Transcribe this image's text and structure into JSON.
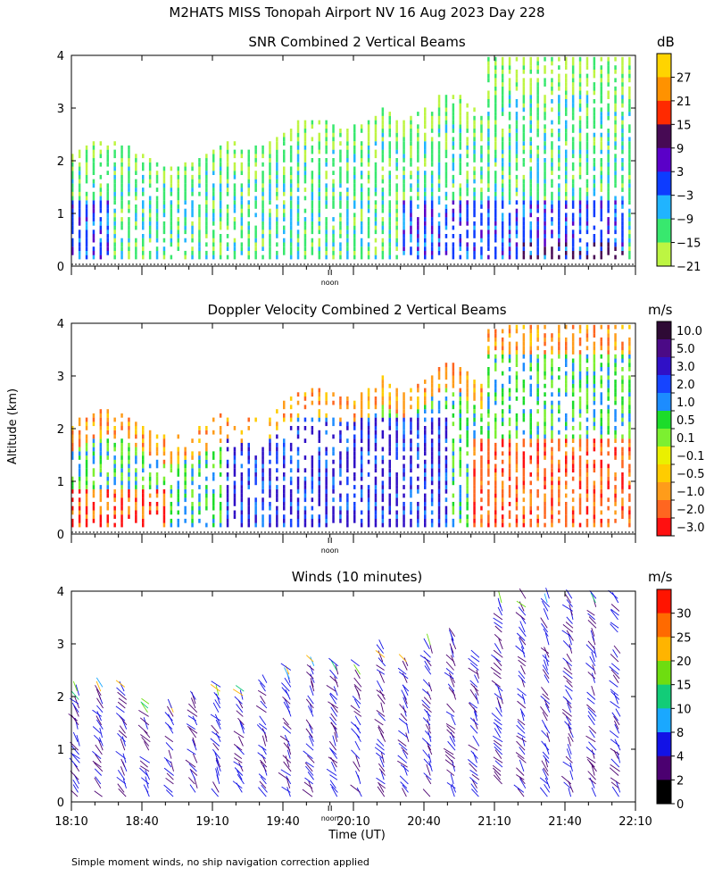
{
  "title": "M2HATS MISS Tonopah Airport NV  16 Aug 2023 Day 228",
  "y_axis_label": "Altitude (km)",
  "x_axis_label": "Time (UT)",
  "footnote": "Simple moment winds, no ship navigation correction applied",
  "noon_label": "noon",
  "chart_data": [
    {
      "type": "heatmap",
      "title": "SNR Combined 2 Vertical Beams",
      "colorbar_unit": "dB",
      "ylim": [
        0,
        4
      ],
      "yticks": [
        0,
        1,
        2,
        3,
        4
      ],
      "colorbar_labels": [
        "27",
        "21",
        "15",
        "9",
        "3",
        "−3",
        "−9",
        "−15",
        "−21"
      ],
      "colorbar_colors": [
        "#ffd400",
        "#ff9200",
        "#ff2a00",
        "#470a54",
        "#5a00c8",
        "#0d3cff",
        "#20b4ff",
        "#38e86e",
        "#bdf542"
      ]
    },
    {
      "type": "heatmap",
      "title": "Doppler Velocity Combined 2 Vertical Beams",
      "colorbar_unit": "m/s",
      "ylim": [
        0,
        4
      ],
      "yticks": [
        0,
        1,
        2,
        3,
        4
      ],
      "colorbar_labels": [
        "10.0",
        "5.0",
        "3.0",
        "2.0",
        "1.0",
        "0.5",
        "0.1",
        "−0.1",
        "−0.5",
        "−1.0",
        "−2.0",
        "−3.0"
      ],
      "colorbar_colors": [
        "#2e0a35",
        "#4b0a86",
        "#3010c6",
        "#1644ff",
        "#1c8cff",
        "#1cdc2a",
        "#7cf030",
        "#eaf000",
        "#ffcc00",
        "#ff9c1a",
        "#ff6620",
        "#ff1010"
      ]
    },
    {
      "type": "scatter",
      "title": "Winds (10 minutes)",
      "colorbar_unit": "m/s",
      "ylim": [
        0,
        4
      ],
      "yticks": [
        0,
        1,
        2,
        3,
        4
      ],
      "x_ticks": [
        "18:10",
        "18:40",
        "19:10",
        "19:40",
        "20:10",
        "20:40",
        "21:10",
        "21:40",
        "22:10"
      ],
      "xlim": [
        "18:10",
        "22:10"
      ],
      "colorbar_labels": [
        "30",
        "25",
        "20",
        "15",
        "10",
        "8",
        "4",
        "2",
        "0"
      ],
      "colorbar_colors": [
        "#ff1400",
        "#ff6a00",
        "#ffb400",
        "#6edd10",
        "#12cc78",
        "#1aa8ff",
        "#1212e6",
        "#4b0070",
        "#000000"
      ]
    }
  ]
}
